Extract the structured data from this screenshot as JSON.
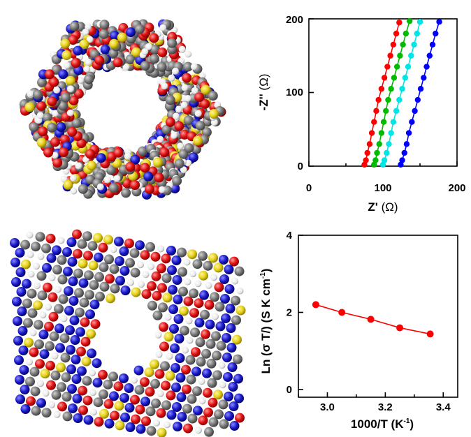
{
  "figure": {
    "panels": [
      {
        "panel": "molecular-model-top-view"
      },
      {
        "panel": "molecular-model-side-view"
      }
    ],
    "atom_colors": {
      "carbon": "#707070",
      "hydrogen": "#f2f2f2",
      "oxygen": "#e01010",
      "nitrogen": "#1a1acc",
      "sulfur": "#e6d21a"
    }
  },
  "chart_data": [
    {
      "type": "scatter",
      "title": "",
      "xlabel_main": "Z'",
      "xlabel_unit": "(Ω)",
      "ylabel_main": "-Z''",
      "ylabel_unit": "(Ω)",
      "xlim": [
        0,
        200
      ],
      "ylim": [
        0,
        200
      ],
      "xticks": [
        "0",
        "100",
        "200"
      ],
      "xticks_values": [
        0,
        100,
        200
      ],
      "xticks_minor": [
        "50",
        "150"
      ],
      "xticks_minor_values": [
        50,
        150
      ],
      "yticks": [
        "0",
        "100",
        "200"
      ],
      "yticks_values": [
        0,
        100,
        200
      ],
      "grid": false,
      "series": [
        {
          "color": "#ff0000",
          "x": [
            75,
            77,
            79,
            82,
            85,
            88,
            91,
            94,
            98,
            102,
            106,
            110,
            114,
            118,
            122
          ],
          "y": [
            2,
            8,
            18,
            30,
            45,
            60,
            75,
            90,
            105,
            120,
            135,
            150,
            165,
            180,
            195
          ]
        },
        {
          "color": "#00bb00",
          "x": [
            88,
            90,
            92,
            95,
            98,
            101,
            104,
            107,
            111,
            115,
            119,
            123,
            127,
            131,
            136
          ],
          "y": [
            2,
            8,
            18,
            30,
            45,
            60,
            75,
            90,
            105,
            120,
            135,
            150,
            165,
            180,
            197
          ]
        },
        {
          "color": "#00e5e5",
          "x": [
            100,
            102,
            105,
            108,
            111,
            114,
            118,
            122,
            126,
            130,
            134,
            138,
            142,
            146,
            150
          ],
          "y": [
            2,
            8,
            18,
            30,
            45,
            60,
            75,
            90,
            105,
            120,
            135,
            150,
            165,
            180,
            196
          ]
        },
        {
          "color": "#0000ff",
          "x": [
            124,
            126,
            129,
            132,
            135,
            139,
            143,
            147,
            151,
            155,
            159,
            163,
            167,
            171,
            176
          ],
          "y": [
            2,
            8,
            18,
            30,
            45,
            60,
            75,
            90,
            105,
            120,
            135,
            150,
            165,
            180,
            196
          ]
        }
      ]
    },
    {
      "type": "line",
      "title": "",
      "xlabel_main": "1000/T (K",
      "xlabel_sup": "-1",
      "xlabel_end": ")",
      "ylabel_main": "Ln (σ T/) (S K cm",
      "ylabel_sup": "-1",
      "ylabel_end": ")",
      "xlim": [
        2.9,
        3.45
      ],
      "ylim": [
        -0.2,
        4
      ],
      "xticks": [
        "3.0",
        "3.2",
        "3.4"
      ],
      "xticks_values": [
        3.0,
        3.2,
        3.4
      ],
      "xticks_minor_values": [
        2.9,
        3.1,
        3.3
      ],
      "yticks": [
        "0",
        "2",
        "4"
      ],
      "yticks_values": [
        0,
        2,
        4
      ],
      "grid": false,
      "series": [
        {
          "color": "#ff0000",
          "x": [
            2.96,
            3.05,
            3.15,
            3.25,
            3.355
          ],
          "y": [
            2.2,
            2.0,
            1.82,
            1.6,
            1.44
          ]
        }
      ]
    }
  ]
}
